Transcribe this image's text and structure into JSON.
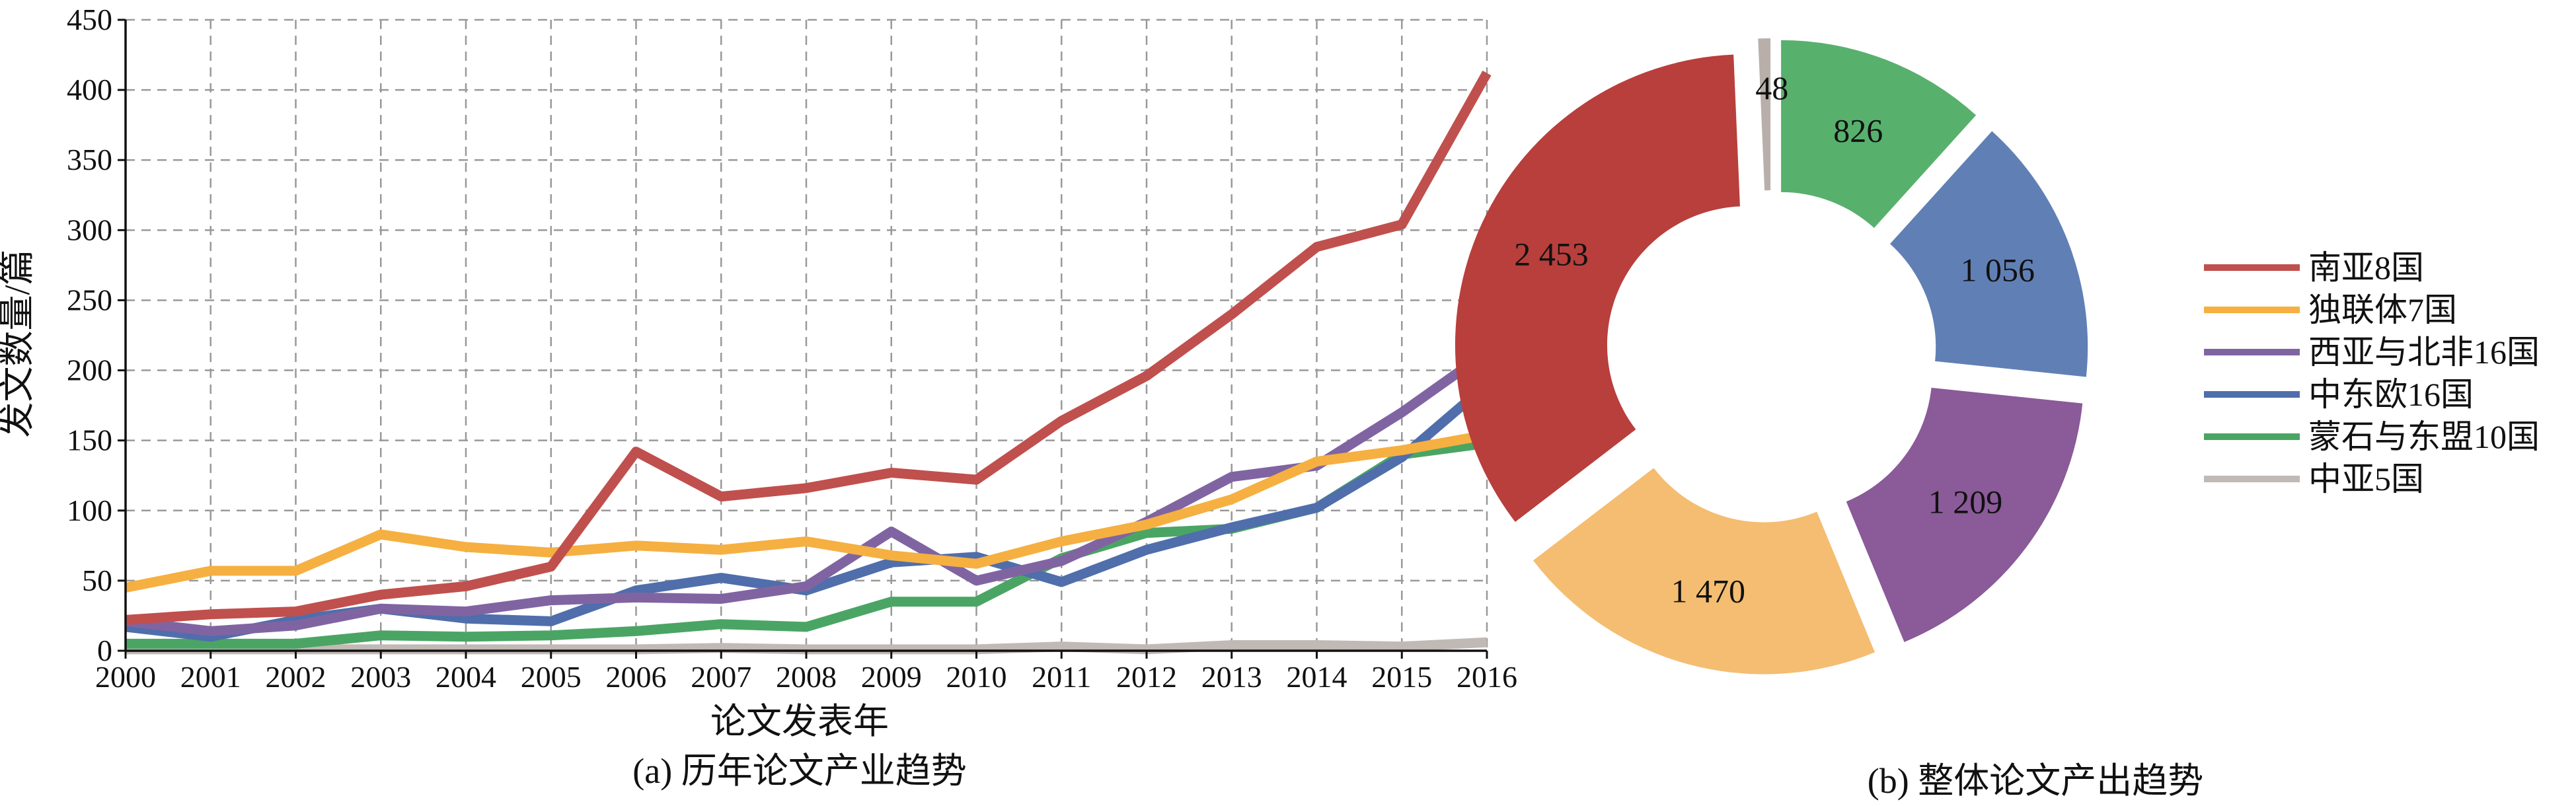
{
  "chart_data": [
    {
      "type": "line",
      "caption": "(a) 历年论文产业趋势",
      "xlabel": "论文发表年",
      "ylabel": "发文数量/篇",
      "x": [
        "2000",
        "2001",
        "2002",
        "2003",
        "2004",
        "2005",
        "2006",
        "2007",
        "2008",
        "2009",
        "2010",
        "2011",
        "2012",
        "2013",
        "2014",
        "2015",
        "2016"
      ],
      "ylim": [
        0,
        450
      ],
      "yticks": [
        0,
        50,
        100,
        150,
        200,
        250,
        300,
        350,
        400,
        450
      ],
      "grid": true,
      "series": [
        {
          "name": "南亚8国",
          "color": "#c0504d",
          "values": [
            22,
            26,
            28,
            40,
            46,
            60,
            142,
            110,
            116,
            127,
            122,
            164,
            196,
            240,
            288,
            304,
            412
          ]
        },
        {
          "name": "独联体7国",
          "color": "#f5b041",
          "values": [
            45,
            57,
            57,
            83,
            74,
            70,
            75,
            72,
            78,
            68,
            62,
            78,
            90,
            108,
            135,
            143,
            154
          ]
        },
        {
          "name": "西亚与北非16国",
          "color": "#8064a2",
          "values": [
            21,
            14,
            18,
            30,
            28,
            36,
            38,
            37,
            46,
            85,
            50,
            64,
            92,
            124,
            132,
            170,
            213
          ]
        },
        {
          "name": "中东欧16国",
          "color": "#4f6eab",
          "values": [
            17,
            10,
            22,
            30,
            23,
            21,
            43,
            52,
            43,
            63,
            67,
            49,
            72,
            88,
            102,
            138,
            190
          ]
        },
        {
          "name": "蒙石与东盟10国",
          "color": "#4aa564",
          "values": [
            5,
            5,
            5,
            11,
            10,
            11,
            14,
            19,
            17,
            35,
            35,
            66,
            84,
            87,
            102,
            140,
            148
          ]
        },
        {
          "name": "中亚5国",
          "color": "#c1b9b5",
          "values": [
            1,
            1,
            1,
            1,
            1,
            1,
            1,
            2,
            1,
            1,
            1,
            3,
            1,
            4,
            4,
            3,
            6
          ]
        }
      ]
    },
    {
      "type": "pie",
      "caption": "(b) 整体论文产出趋势",
      "donut": true,
      "slices": [
        {
          "name": "南亚8国",
          "value": 2453,
          "label": "2 453",
          "color": "#b83f3c"
        },
        {
          "name": "独联体7国",
          "value": 1470,
          "label": "1 470",
          "color": "#f4bd71"
        },
        {
          "name": "西亚与北非16国",
          "value": 1209,
          "label": "1 209",
          "color": "#8a5a99"
        },
        {
          "name": "中东欧16国",
          "value": 1056,
          "label": "1 056",
          "color": "#6080b5"
        },
        {
          "name": "蒙石与东盟10国",
          "value": 826,
          "label": "826",
          "color": "#58b06d"
        },
        {
          "name": "中亚5国",
          "value": 48,
          "label": "48",
          "color": "#b8afab"
        }
      ],
      "legend": [
        {
          "name": "南亚8国",
          "color": "#c0504d"
        },
        {
          "name": "独联体7国",
          "color": "#f5b041"
        },
        {
          "name": "西亚与北非16国",
          "color": "#8064a2"
        },
        {
          "name": "中东欧16国",
          "color": "#4f6eab"
        },
        {
          "name": "蒙石与东盟10国",
          "color": "#4aa564"
        },
        {
          "name": "中亚5国",
          "color": "#c1b9b5"
        }
      ],
      "legend_position": "right"
    }
  ]
}
